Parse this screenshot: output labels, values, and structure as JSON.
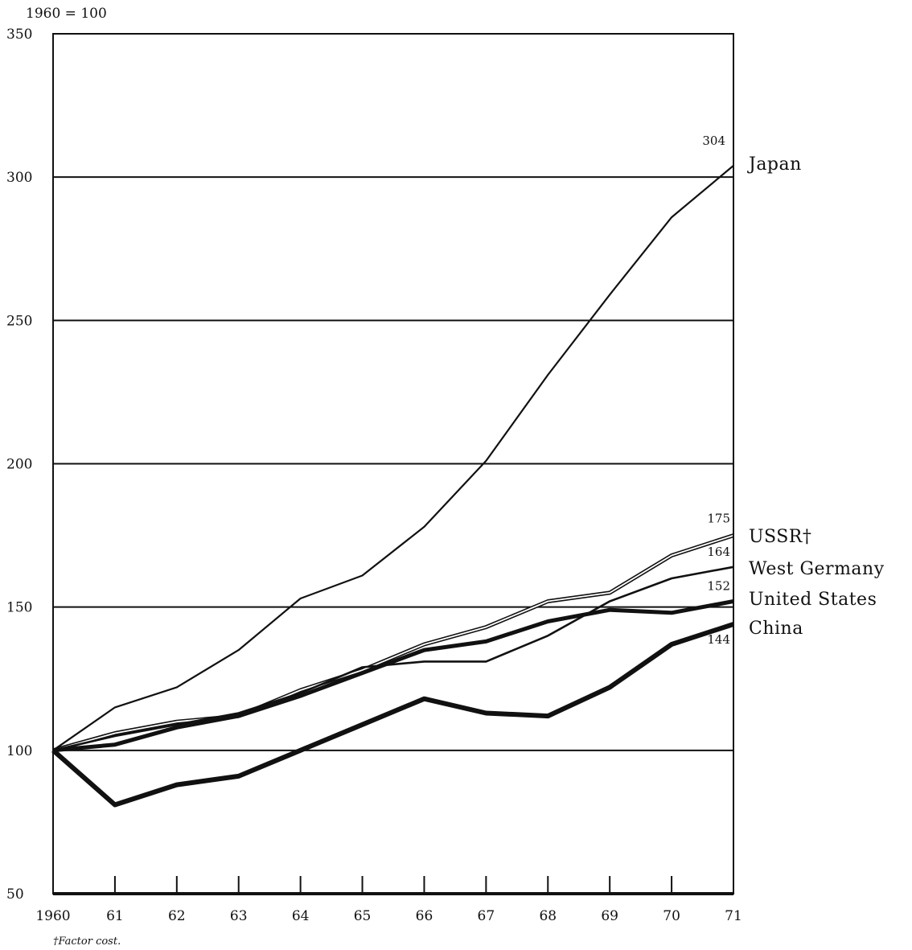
{
  "chart_data": {
    "type": "line",
    "index_note": "1960 = 100",
    "footnote": "†Factor cost.",
    "x_categories": [
      "1960",
      "61",
      "62",
      "63",
      "64",
      "65",
      "66",
      "67",
      "68",
      "69",
      "70",
      "71"
    ],
    "ylim": [
      50,
      350
    ],
    "y_ticks": [
      50,
      100,
      150,
      200,
      250,
      300,
      350
    ],
    "grid": "horizontal",
    "series": [
      {
        "name": "Japan",
        "style": "thin",
        "values": [
          100,
          115,
          122,
          135,
          153,
          161,
          178,
          201,
          231,
          259,
          286,
          304
        ],
        "end_label": "304"
      },
      {
        "name": "USSR†",
        "style": "double",
        "values": [
          100,
          106,
          110,
          112,
          121,
          128,
          137,
          143,
          152,
          155,
          168,
          175
        ],
        "end_label": "175"
      },
      {
        "name": "West Germany",
        "style": "medium",
        "values": [
          100,
          105,
          109,
          113,
          120,
          129,
          131,
          131,
          140,
          152,
          160,
          164
        ],
        "end_label": "164"
      },
      {
        "name": "United States",
        "style": "thick",
        "values": [
          100,
          102,
          108,
          112,
          119,
          127,
          135,
          138,
          145,
          149,
          148,
          152
        ],
        "end_label": "152"
      },
      {
        "name": "China",
        "style": "thickest",
        "values": [
          100,
          81,
          88,
          91,
          100,
          109,
          118,
          113,
          112,
          122,
          137,
          144
        ],
        "end_label": "144"
      }
    ]
  }
}
